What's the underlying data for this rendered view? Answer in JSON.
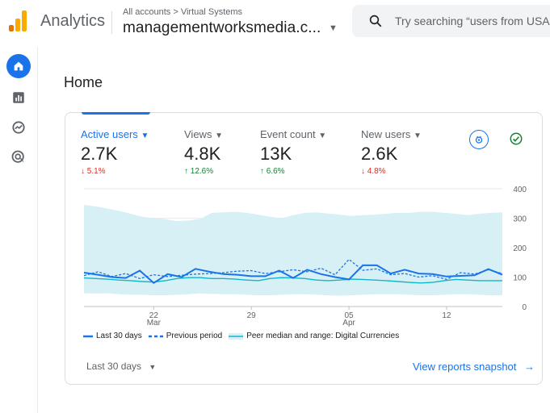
{
  "header": {
    "app_name": "Analytics",
    "breadcrumb": "All accounts > Virtual Systems",
    "account_name": "managementworksmedia.c...",
    "search_placeholder": "Try searching “users from USA"
  },
  "page": {
    "title": "Home"
  },
  "metrics": [
    {
      "label": "Active users",
      "value": "2.7K",
      "change": "5.1%",
      "direction": "down"
    },
    {
      "label": "Views",
      "value": "4.8K",
      "change": "12.6%",
      "direction": "up"
    },
    {
      "label": "Event count",
      "value": "13K",
      "change": "6.6%",
      "direction": "up"
    },
    {
      "label": "New users",
      "value": "2.6K",
      "change": "4.8%",
      "direction": "down"
    }
  ],
  "chart_data": {
    "type": "line",
    "y_ticks": [
      "400",
      "300",
      "200",
      "100",
      "0"
    ],
    "ylim": [
      0,
      400
    ],
    "x_ticks": [
      {
        "label": "22",
        "sub": "Mar",
        "index": 5
      },
      {
        "label": "29",
        "sub": "",
        "index": 12
      },
      {
        "label": "05",
        "sub": "Apr",
        "index": 19
      },
      {
        "label": "12",
        "sub": "",
        "index": 26
      }
    ],
    "series": [
      {
        "name": "Last 30 days",
        "values": [
          115,
          108,
          100,
          97,
          122,
          80,
          110,
          100,
          128,
          118,
          110,
          108,
          103,
          103,
          122,
          97,
          125,
          110,
          100,
          92,
          140,
          140,
          112,
          125,
          112,
          110,
          102,
          104,
          106,
          127,
          108
        ]
      },
      {
        "name": "Previous period",
        "values": [
          105,
          118,
          102,
          112,
          95,
          108,
          102,
          106,
          110,
          112,
          115,
          120,
          122,
          112,
          118,
          125,
          118,
          130,
          108,
          160,
          123,
          128,
          108,
          112,
          100,
          105,
          92,
          115,
          110,
          125,
          112
        ]
      },
      {
        "name": "Peer median and range: Digital Currencies",
        "median": [
          97,
          95,
          93,
          90,
          88,
          85,
          83,
          88,
          95,
          98,
          98,
          95,
          95,
          93,
          90,
          88,
          95,
          98,
          97,
          95,
          90,
          88,
          90,
          93,
          92,
          90,
          88,
          85,
          82,
          80,
          82,
          88,
          92,
          90,
          88,
          88,
          88
        ]
      }
    ],
    "band_upper": [
      345,
      340,
      333,
      325,
      315,
      305,
      300,
      297,
      290,
      292,
      298,
      318,
      320,
      322,
      318,
      312,
      305,
      300,
      310,
      318,
      320,
      316,
      312,
      308,
      310,
      312,
      315,
      318,
      318,
      322,
      322,
      318,
      315,
      310,
      315,
      318,
      320
    ],
    "band_lower": [
      45,
      44,
      45,
      42,
      40,
      40,
      38,
      38,
      40,
      42,
      44,
      43,
      42,
      42,
      40,
      38,
      38,
      40,
      42,
      42,
      40,
      38,
      37,
      38,
      40,
      42,
      42,
      42,
      40,
      38,
      38,
      40,
      42,
      42,
      40,
      38,
      38
    ]
  },
  "legend": {
    "last_30": "Last 30 days",
    "previous": "Previous period",
    "peer": "Peer median and range: Digital Currencies"
  },
  "footer": {
    "date_range": "Last 30 days",
    "link": "View reports snapshot"
  },
  "colors": {
    "accent": "#1a73e8",
    "band": "#d6f0f5",
    "peer_line": "#12b5cb",
    "negative": "#d93025",
    "positive": "#188038"
  }
}
